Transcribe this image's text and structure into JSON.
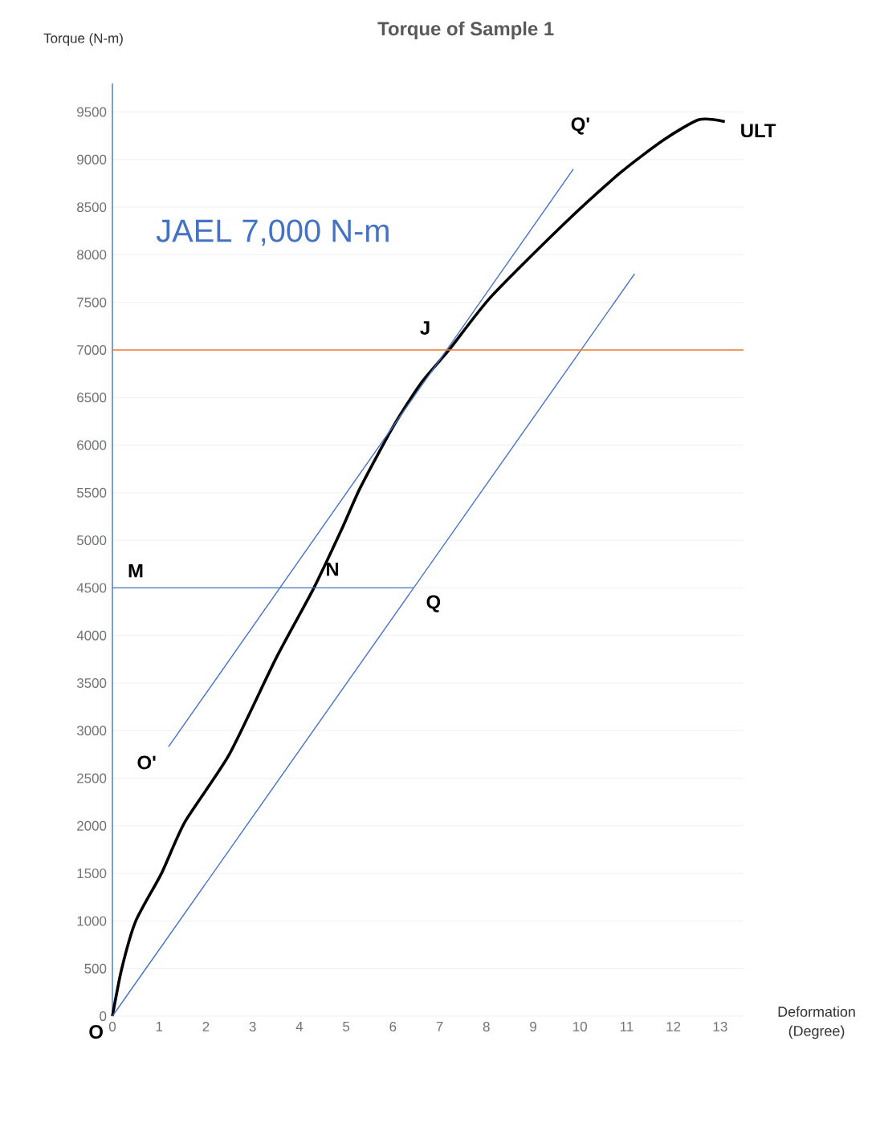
{
  "chart_data": {
    "type": "line",
    "title": "Torque of Sample 1",
    "xlabel": "Deformation (Degree)",
    "ylabel": "Torque (N-m)",
    "xlim": [
      0,
      13.5
    ],
    "xticks": [
      0,
      1,
      2,
      3,
      4,
      5,
      6,
      7,
      8,
      9,
      10,
      11,
      12,
      13
    ],
    "ylim": [
      0,
      9800
    ],
    "yticks": [
      0,
      500,
      1000,
      1500,
      2000,
      2500,
      3000,
      3500,
      4000,
      4500,
      5000,
      5500,
      6000,
      6500,
      7000,
      7500,
      8000,
      8500,
      9000,
      9500
    ],
    "grid": "y",
    "marker": "none",
    "line_style": "solid",
    "series": [
      {
        "color": "#000000",
        "x": [
          0,
          0.2,
          0.5,
          1.05,
          1.55,
          2.5,
          3.5,
          4.3,
          4.9,
          5.3,
          6.0,
          6.6,
          7.2,
          8.1,
          9.65,
          10.86,
          11.8,
          12.55,
          13.1
        ],
        "values": [
          0,
          500,
          1000,
          1500,
          2040,
          2750,
          3760,
          4490,
          5110,
          5550,
          6190,
          6650,
          7000,
          7560,
          8320,
          8860,
          9210,
          9420,
          9400
        ]
      },
      {
        "color": "#4472c4",
        "x": [
          1.2,
          9.86
        ],
        "values": [
          2830,
          8900
        ]
      },
      {
        "color": "#4472c4",
        "x": [
          0,
          11.17
        ],
        "values": [
          0,
          7800
        ]
      },
      {
        "color": "#4472c4",
        "x": [
          0,
          6.45
        ],
        "values": [
          4500,
          4500
        ]
      }
    ],
    "ref_lines": [
      {
        "axis": "y",
        "value": 7000,
        "color": "#ed7d31"
      }
    ],
    "annotations": [
      {
        "text": "O",
        "x": 0,
        "y": 0
      },
      {
        "text": "O'",
        "x": 1.2,
        "y": 2830
      },
      {
        "text": "M",
        "x": 0,
        "y": 4500
      },
      {
        "text": "N",
        "x": 4.3,
        "y": 4500
      },
      {
        "text": "Q",
        "x": 6.45,
        "y": 4500
      },
      {
        "text": "J",
        "x": 7.2,
        "y": 7000
      },
      {
        "text": "Q'",
        "x": 9.86,
        "y": 8900
      },
      {
        "text": "ULT",
        "x": 13.1,
        "y": 9400
      },
      "JAEL 7,000 N-m"
    ]
  }
}
